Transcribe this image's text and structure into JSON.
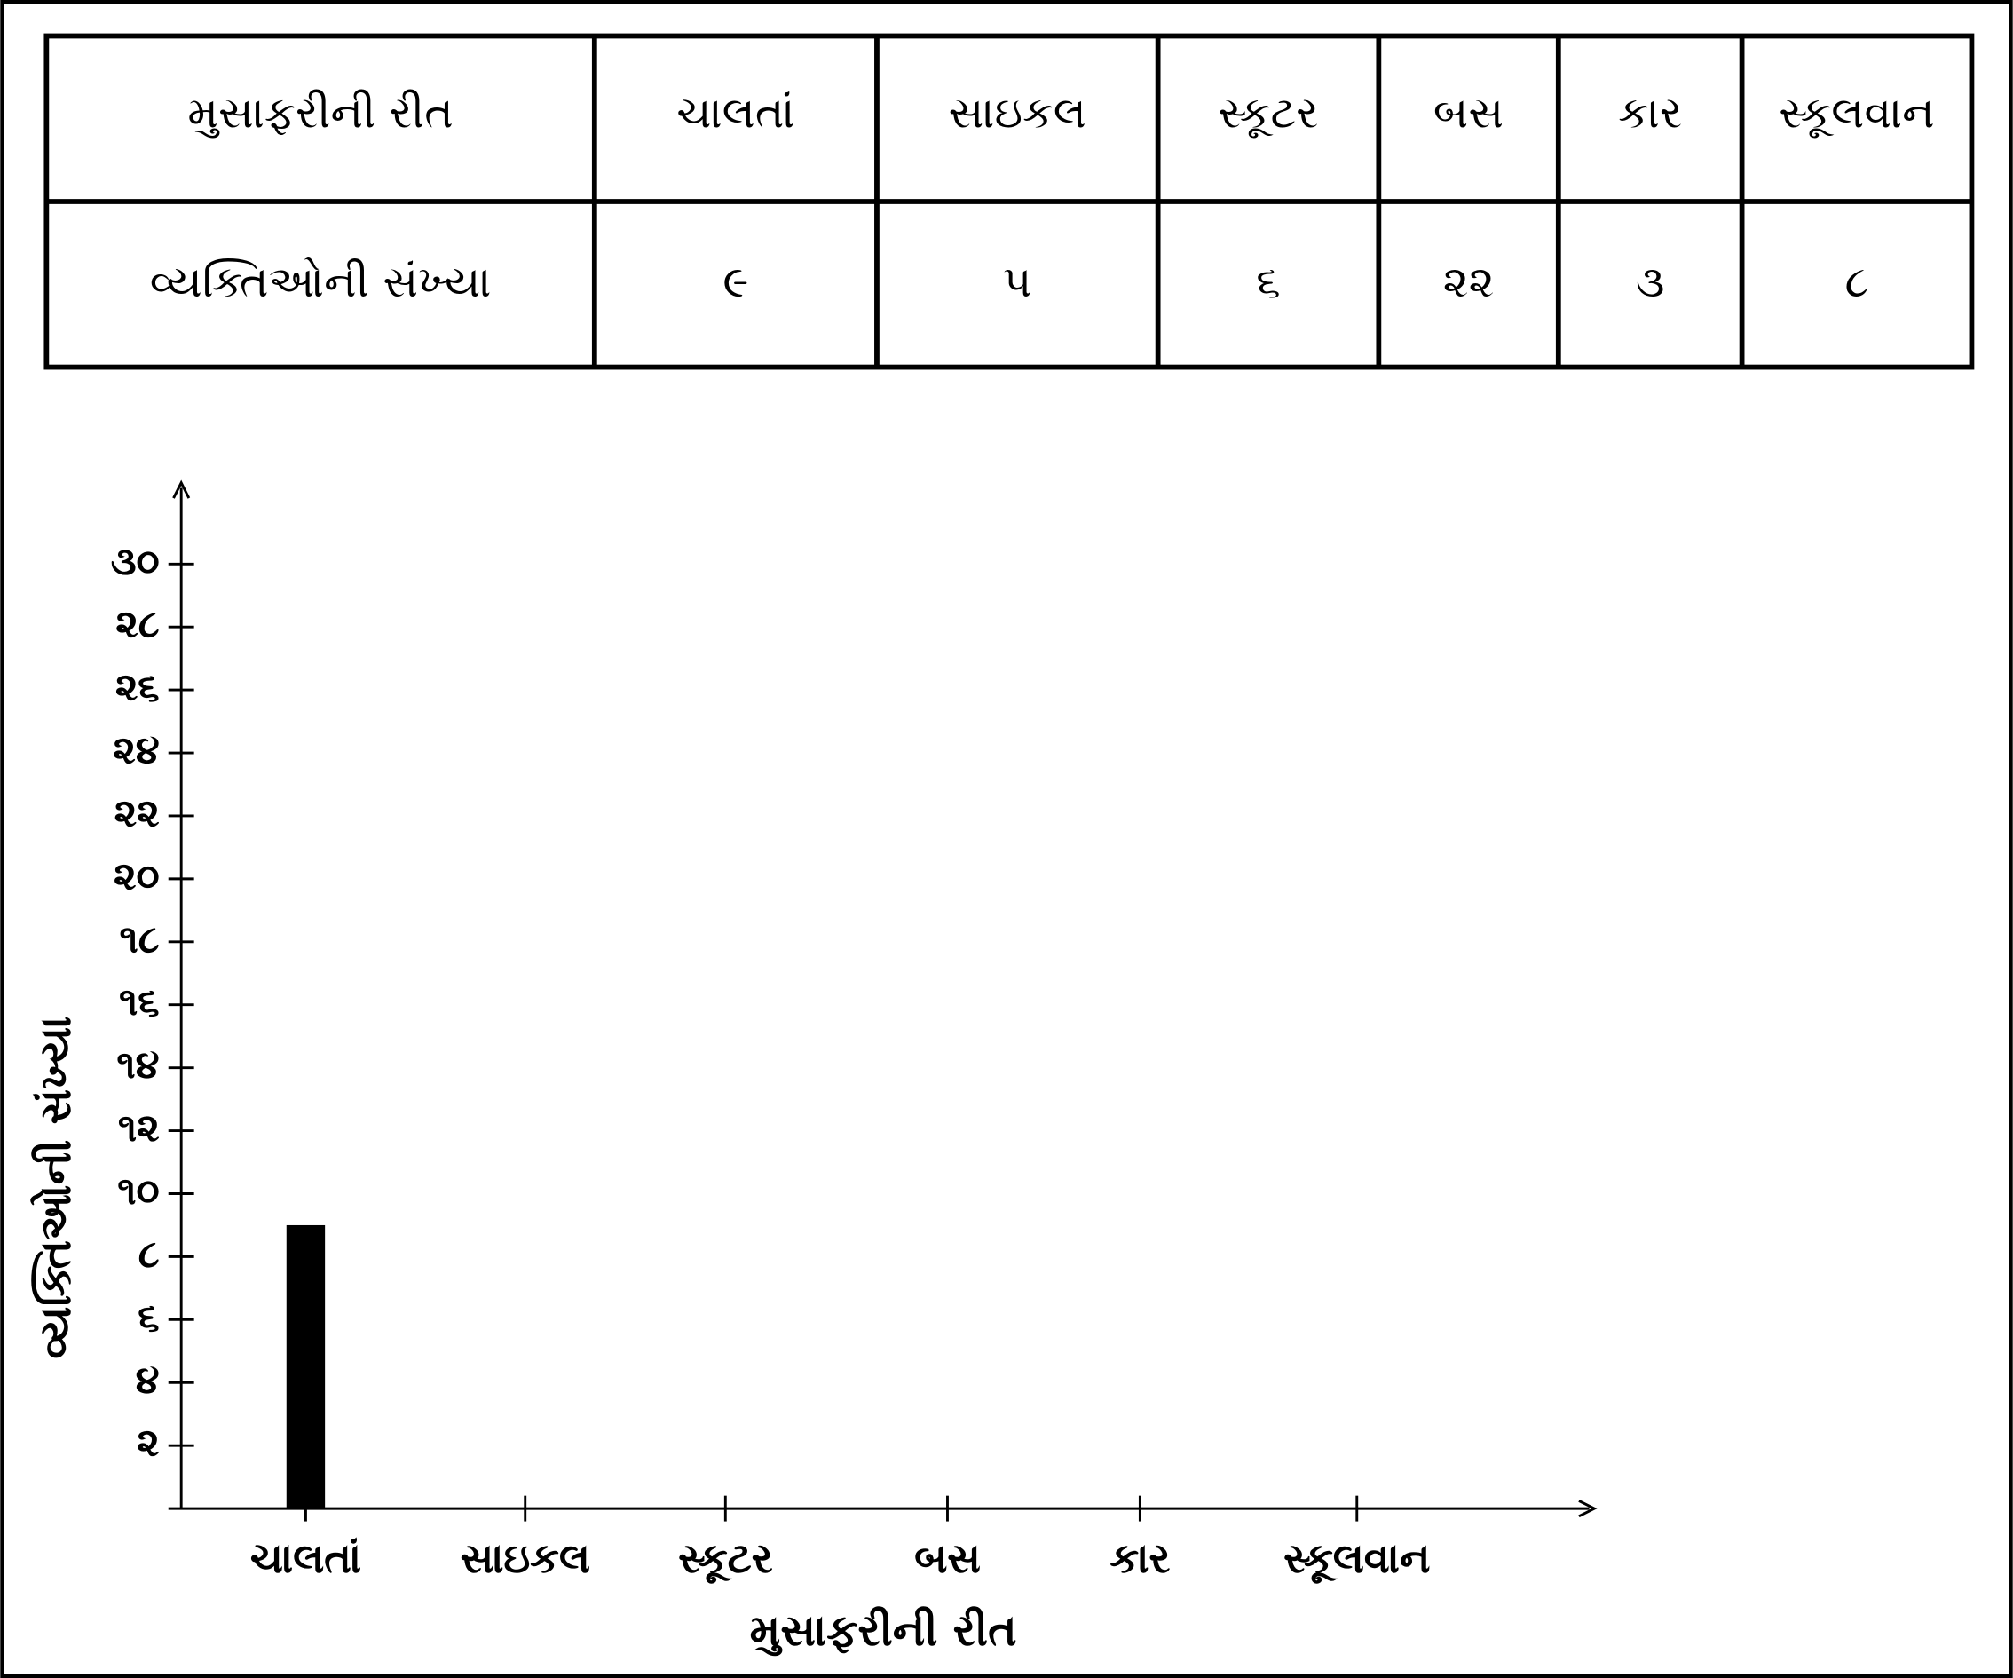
{
  "table": {
    "header": [
      "મુસાફરીની રીત",
      "ચાલતાં",
      "સાઇકલ",
      "સ્કૂટર",
      "બસ",
      "કાર",
      "સ્કૂલવાન"
    ],
    "rows": [
      [
        "વ્યક્તિઓની સંખ્યા",
        "૯",
        "૫",
        "૬",
        "૨૨",
        "૩",
        "૮"
      ]
    ]
  },
  "chart_data": {
    "type": "bar",
    "x_label": "મુસાફરીની રીત",
    "y_label": "વ્યક્તિઓની સંખ્યા",
    "categories": [
      "ચાલતાં",
      "સાઇકલ",
      "સ્કૂટર",
      "બસ",
      "કાર",
      "સ્કૂલવાન"
    ],
    "values": [
      9,
      null,
      null,
      null,
      null,
      null
    ],
    "color": "#000000",
    "ylim": [
      0,
      32.5
    ],
    "yticks": [
      {
        "value": 2,
        "label": "૨"
      },
      {
        "value": 4,
        "label": "૪"
      },
      {
        "value": 6,
        "label": "૬"
      },
      {
        "value": 8,
        "label": "૮"
      },
      {
        "value": 10,
        "label": "૧૦"
      },
      {
        "value": 12,
        "label": "૧૨"
      },
      {
        "value": 14,
        "label": "૧૪"
      },
      {
        "value": 16,
        "label": "૧૬"
      },
      {
        "value": 18,
        "label": "૧૮"
      },
      {
        "value": 20,
        "label": "૨૦"
      },
      {
        "value": 22,
        "label": "૨૨"
      },
      {
        "value": 24,
        "label": "૨૪"
      },
      {
        "value": 26,
        "label": "૨૬"
      },
      {
        "value": 28,
        "label": "૨૮"
      },
      {
        "value": 30,
        "label": "૩૦"
      }
    ]
  }
}
